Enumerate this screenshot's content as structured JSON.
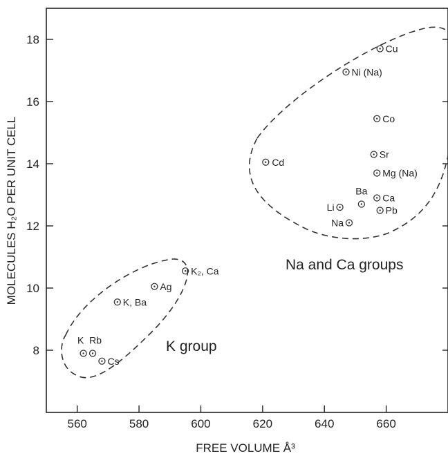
{
  "chart_data": {
    "type": "scatter",
    "title": "",
    "xlabel": "FREE VOLUME Å³",
    "ylabel": "MOLECULES H₂O PER UNIT CELL",
    "xlim": [
      550,
      680
    ],
    "ylim": [
      6,
      19
    ],
    "x_ticks": [
      560,
      580,
      600,
      620,
      640,
      660
    ],
    "y_ticks": [
      8,
      10,
      12,
      14,
      16,
      18
    ],
    "grid": false,
    "points": [
      {
        "label": "K",
        "x": 562,
        "y": 7.9
      },
      {
        "label": "Rb",
        "x": 565,
        "y": 7.9
      },
      {
        "label": "Cs",
        "x": 568,
        "y": 7.65
      },
      {
        "label": "K, Ba",
        "x": 573,
        "y": 9.55
      },
      {
        "label": "Ag",
        "x": 585,
        "y": 10.05
      },
      {
        "label": "K₂, Ca",
        "x": 595,
        "y": 10.55
      },
      {
        "label": "Cd",
        "x": 621,
        "y": 14.05
      },
      {
        "label": "Li",
        "x": 645,
        "y": 12.6
      },
      {
        "label": "Ba",
        "x": 652,
        "y": 12.7
      },
      {
        "label": "Na",
        "x": 648,
        "y": 12.1
      },
      {
        "label": "Ni (Na)",
        "x": 647,
        "y": 16.95
      },
      {
        "label": "Cu",
        "x": 658,
        "y": 17.7
      },
      {
        "label": "Co",
        "x": 657,
        "y": 15.45
      },
      {
        "label": "Sr",
        "x": 656,
        "y": 14.3
      },
      {
        "label": "Mg (Na)",
        "x": 657,
        "y": 13.7
      },
      {
        "label": "Ca",
        "x": 657,
        "y": 12.9
      },
      {
        "label": "Pb",
        "x": 658,
        "y": 12.5
      }
    ],
    "annotations": [
      {
        "text": "Na and Ca groups"
      },
      {
        "text": "K group"
      }
    ]
  }
}
